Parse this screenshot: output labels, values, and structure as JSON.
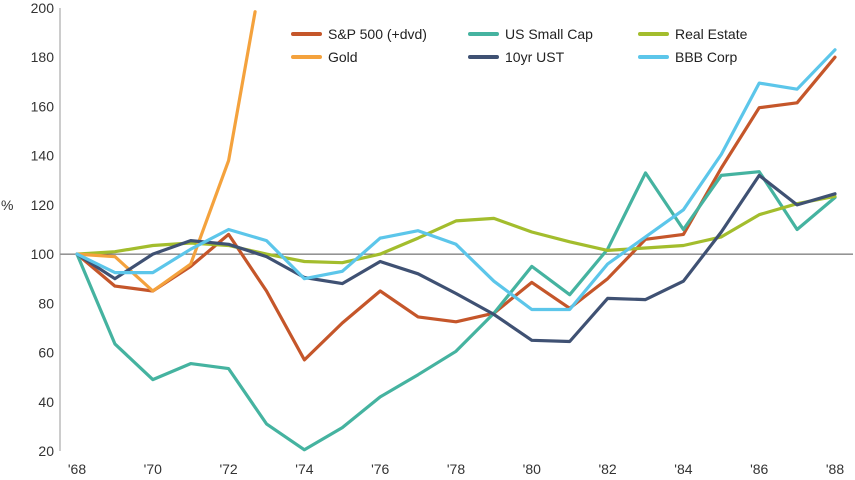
{
  "chart_data": {
    "type": "line",
    "title": "",
    "xlabel": "",
    "ylabel": "%",
    "ylim": [
      20,
      200
    ],
    "yticks": [
      20,
      40,
      60,
      80,
      100,
      120,
      140,
      160,
      180,
      200
    ],
    "xlim": [
      1968,
      1988
    ],
    "xticks": [
      1968,
      1970,
      1972,
      1974,
      1976,
      1978,
      1980,
      1982,
      1984,
      1986,
      1988
    ],
    "xtick_labels": [
      "'68",
      "'70",
      "'72",
      "'74",
      "'76",
      "'78",
      "'80",
      "'82",
      "'84",
      "'86",
      "'88"
    ],
    "reference_line": 100,
    "grid": false,
    "legend_position": "top-right",
    "series": [
      {
        "name": "S&P 500 (+dvd)",
        "color": "#C5562A",
        "x": [
          1968,
          1969,
          1970,
          1971,
          1972,
          1973,
          1974,
          1975,
          1976,
          1977,
          1978,
          1979,
          1980,
          1981,
          1982,
          1983,
          1984,
          1985,
          1986,
          1987,
          1988
        ],
        "values": [
          100,
          87,
          85,
          95,
          108,
          85,
          57,
          72,
          85,
          74.5,
          72.5,
          76,
          88.5,
          78,
          90,
          106,
          108,
          135,
          159.5,
          161.5,
          180
        ]
      },
      {
        "name": "US Small Cap",
        "color": "#45B3A0",
        "x": [
          1968,
          1969,
          1970,
          1971,
          1972,
          1973,
          1974,
          1975,
          1976,
          1977,
          1978,
          1979,
          1980,
          1981,
          1982,
          1983,
          1984,
          1985,
          1986,
          1987,
          1988
        ],
        "values": [
          100,
          63.5,
          49,
          55.5,
          53.5,
          31,
          20.5,
          29.5,
          42,
          51,
          60.5,
          76,
          95,
          83.5,
          102,
          133,
          110,
          132,
          133.5,
          110,
          123
        ]
      },
      {
        "name": "Real Estate",
        "color": "#A3BD2D",
        "x": [
          1968,
          1969,
          1970,
          1971,
          1972,
          1973,
          1974,
          1975,
          1976,
          1977,
          1978,
          1979,
          1980,
          1981,
          1982,
          1983,
          1984,
          1985,
          1986,
          1987,
          1988
        ],
        "values": [
          100,
          101,
          103.5,
          104.5,
          103.5,
          100,
          97,
          96.5,
          100,
          106.5,
          113.5,
          114.5,
          109,
          105,
          101.5,
          102.5,
          103.5,
          107,
          116,
          120.5,
          123.5
        ]
      },
      {
        "name": "Gold",
        "color": "#F4A23D",
        "x": [
          1968,
          1969,
          1970,
          1971,
          1972,
          1972.7
        ],
        "values": [
          100,
          99,
          85,
          96,
          138,
          198.5
        ]
      },
      {
        "name": "10yr UST",
        "color": "#3F5173",
        "x": [
          1968,
          1969,
          1970,
          1971,
          1972,
          1973,
          1974,
          1975,
          1976,
          1977,
          1978,
          1979,
          1980,
          1981,
          1982,
          1983,
          1984,
          1985,
          1986,
          1987,
          1988
        ],
        "values": [
          100,
          90,
          100,
          105.5,
          104,
          99,
          90.5,
          88,
          97,
          92,
          84,
          75.5,
          65,
          64.5,
          82,
          81.5,
          89,
          109,
          132,
          120,
          124.5
        ]
      },
      {
        "name": "BBB Corp",
        "color": "#5CC6EA",
        "x": [
          1968,
          1969,
          1970,
          1971,
          1972,
          1973,
          1974,
          1975,
          1976,
          1977,
          1978,
          1979,
          1980,
          1981,
          1982,
          1983,
          1984,
          1985,
          1986,
          1987,
          1988
        ],
        "values": [
          100,
          92.5,
          92.5,
          102,
          110,
          105.5,
          90,
          93,
          106.5,
          109.5,
          104,
          89,
          77.5,
          77.5,
          96,
          107,
          118,
          140.5,
          169.5,
          167,
          183
        ]
      }
    ]
  }
}
